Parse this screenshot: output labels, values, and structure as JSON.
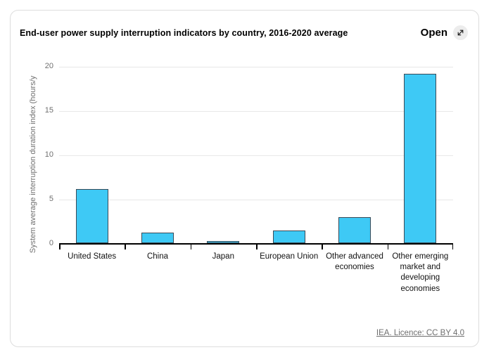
{
  "card": {
    "title": "End-user power supply interruption indicators by country, 2016-2020 average",
    "open_button": {
      "label": "Open",
      "icon": "diagonal-expand-arrow"
    },
    "footer": {
      "link_text": "IEA. Licence: CC BY 4.0"
    }
  },
  "colors": {
    "bar_fill": "#3ec9f5",
    "bar_border": "#3a4a57",
    "gridline": "#e8e8e8",
    "axis_line": "#000000",
    "y_tick_label": "#6f6f6f",
    "x_tick_label": "#111111",
    "y_axis_label": "#6f6f6f",
    "footer_link": "#6e6e6e",
    "card_border": "#dddddd",
    "open_circle_bg": "#ececec"
  },
  "chart_data": {
    "type": "bar",
    "title": "End-user power supply interruption indicators by country, 2016-2020 average",
    "categories": [
      "United States",
      "China",
      "Japan",
      "European Union",
      "Other advanced economies",
      "Other emerging market and developing economies"
    ],
    "values": [
      6.1,
      1.2,
      0.2,
      1.4,
      2.9,
      19.1
    ],
    "xlabel": "",
    "ylabel": "System average interruption duration index (hours/y",
    "ylim": [
      0,
      20
    ],
    "yticks": [
      0,
      5,
      10,
      15,
      20
    ],
    "grid": true,
    "legend": false
  }
}
